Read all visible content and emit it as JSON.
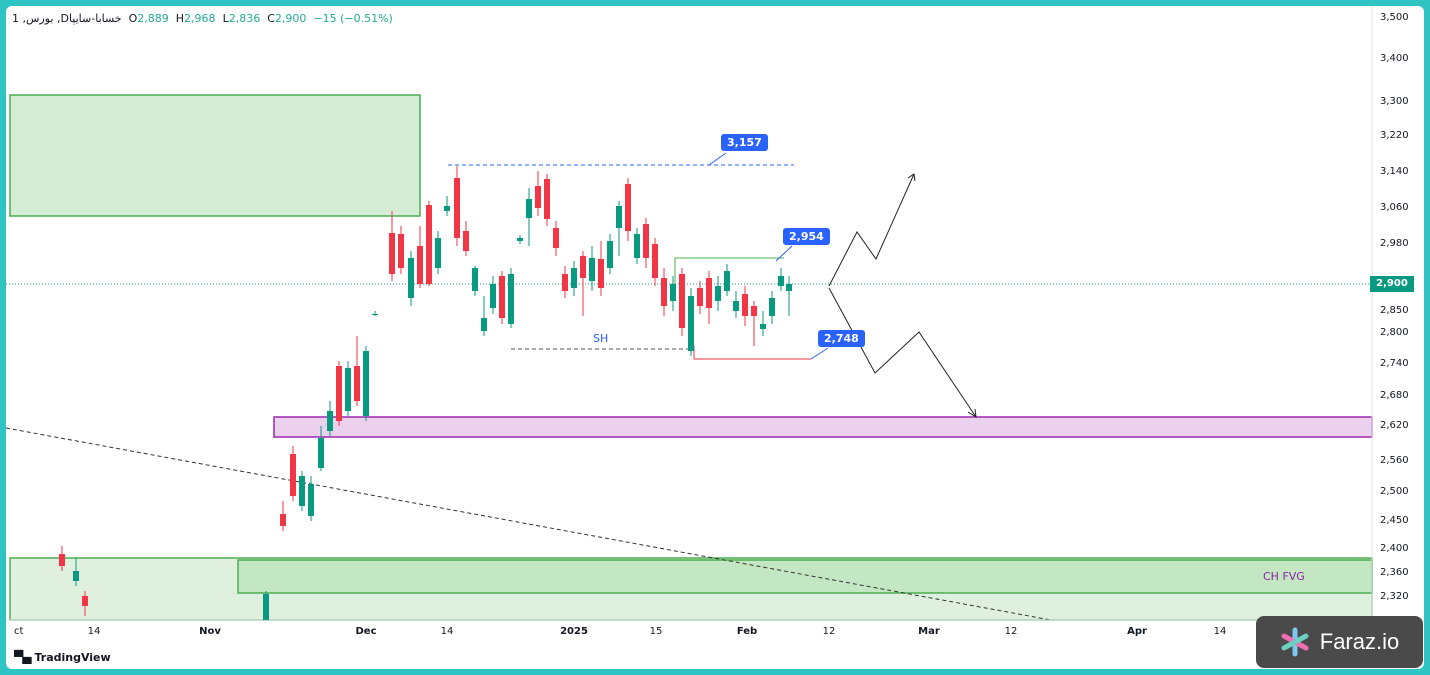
{
  "legend": {
    "symbol": "1 ,بورس ,Dخسابا-سایپا",
    "o_label": "O",
    "o": "2,889",
    "h_label": "H",
    "h": "2,968",
    "l_label": "L",
    "l": "2,836",
    "c_label": "C",
    "c": "2,900",
    "change": "−15 (−0.51%)"
  },
  "price_tag": "2,900",
  "callouts": {
    "high": "3,157",
    "range_top": "2,954",
    "range_bottom": "2,748"
  },
  "annotations": {
    "sh": "SH",
    "zone": "CH  FVG"
  },
  "branding": {
    "tradingview": "TradingView",
    "faraz": "Faraz.io"
  },
  "colors": {
    "up": "#089981",
    "down": "#f23645",
    "bg_frame": "#2ec4c4",
    "zone_green": "#4caf50",
    "zone_purple": "#9c27b0"
  },
  "chart_data": {
    "type": "candlestick",
    "ylim": [
      2300,
      3500
    ],
    "y_ticks": [
      "3,500",
      "3,400",
      "3,300",
      "3,220",
      "3,140",
      "3,060",
      "2,980",
      "2,900",
      "2,850",
      "2,800",
      "2,740",
      "2,680",
      "2,620",
      "2,560",
      "2,500",
      "2,450",
      "2,400",
      "2,360",
      "2,320"
    ],
    "x_ticks": [
      "ct",
      "14",
      "Nov",
      "Dec",
      "14",
      "2025",
      "15",
      "Feb",
      "12",
      "Mar",
      "12",
      "Apr",
      "14"
    ],
    "last_close": 2900,
    "levels": {
      "high": 3157,
      "range_top": 2954,
      "range_bottom": 2748
    },
    "zones": [
      {
        "name": "supply",
        "from": 3060,
        "to": 3320
      },
      {
        "name": "demand",
        "from": 2600,
        "to": 2640
      },
      {
        "name": "CH FVG",
        "from": 2330,
        "to": 2395
      }
    ]
  }
}
